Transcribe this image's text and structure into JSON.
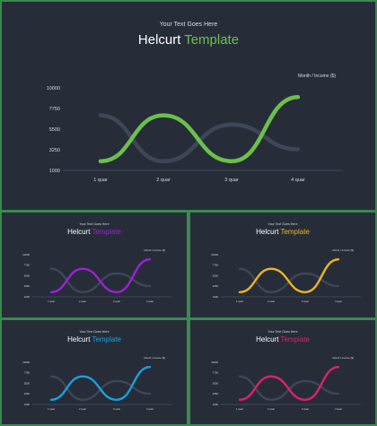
{
  "slides": {
    "main": {
      "subtitle": "Your Text Goes Here",
      "title_plain": "Helcurt",
      "title_accent": "Template",
      "accent": "#6cc04a",
      "note": "Month  / Income ($)"
    },
    "purple": {
      "subtitle": "Your Text Goes Here",
      "title_plain": "Helcurt",
      "title_accent": "Template",
      "accent": "#a020d8",
      "note": "Month  / Income ($)"
    },
    "yellow": {
      "subtitle": "Your Text Goes Here",
      "title_plain": "Helcurt",
      "title_accent": "Template",
      "accent": "#f0b41c",
      "note": "Month  / Income ($)"
    },
    "blue": {
      "subtitle": "Your Text Goes Here",
      "title_plain": "Helcurt",
      "title_accent": "Template",
      "accent": "#1aa0e0",
      "note": "Month  / Income ($)"
    },
    "pink": {
      "subtitle": "Your Text Goes Here",
      "title_plain": "Helcurt",
      "title_accent": "Template",
      "accent": "#e0206e",
      "note": "Month  / Income ($)"
    }
  },
  "colors": {
    "background": "#262d39",
    "border": "#3a8a4e",
    "secondary_series": "#3d4757"
  },
  "chart_data": {
    "type": "line",
    "smooth": true,
    "categories": [
      "1 quar",
      "2 quar",
      "3 quar",
      "4 quar"
    ],
    "y_ticks": [
      "10000",
      "7750",
      "5500",
      "3250",
      "1000"
    ],
    "ylim": [
      1000,
      10000
    ],
    "series": [
      {
        "role": "accent",
        "values": [
          2000,
          7000,
          2000,
          9000
        ],
        "x": [
          0,
          1,
          2,
          3
        ]
      },
      {
        "role": "secondary",
        "values": [
          7000,
          2000,
          6000,
          3300
        ],
        "x": [
          0,
          1,
          2,
          3
        ]
      }
    ]
  }
}
